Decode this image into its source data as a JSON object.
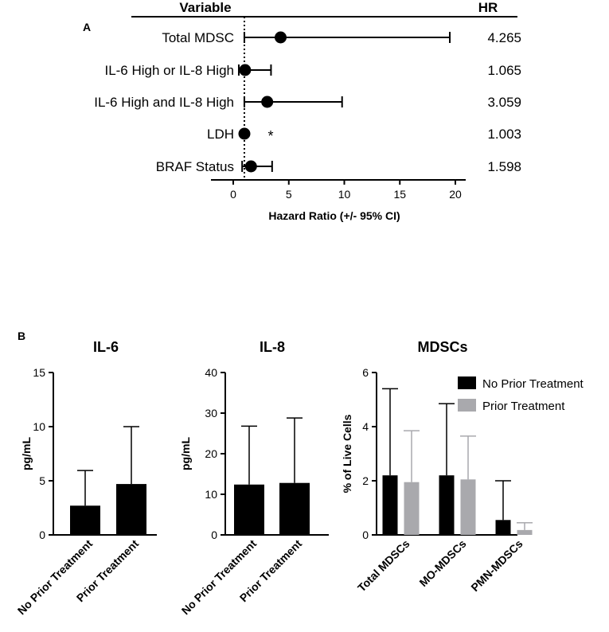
{
  "panel_a": {
    "label": "A",
    "header_variable": "Variable",
    "header_hr": "HR"
  },
  "panel_b": {
    "label": "B"
  },
  "chart_data": [
    {
      "type": "forest",
      "title": "",
      "xlabel": "Hazard Ratio (+/- 95% CI)",
      "xlim": [
        -2,
        20
      ],
      "xticks": [
        0,
        5,
        10,
        15,
        20
      ],
      "reference_line": 1,
      "rows": [
        {
          "variable": "Total MDSC",
          "hr": 4.265,
          "hr_label": "4.265",
          "ci": [
            1.0,
            19.5
          ],
          "annotation": ""
        },
        {
          "variable": "IL-6 High or IL-8 High",
          "hr": 1.065,
          "hr_label": "1.065",
          "ci": [
            0.5,
            3.4
          ],
          "annotation": ""
        },
        {
          "variable": "IL-6 High and IL-8 High",
          "hr": 3.059,
          "hr_label": "3.059",
          "ci": [
            1.0,
            9.8
          ],
          "annotation": ""
        },
        {
          "variable": "LDH",
          "hr": 1.003,
          "hr_label": "1.003",
          "ci": [
            0.95,
            1.05
          ],
          "annotation": "*"
        },
        {
          "variable": "BRAF Status",
          "hr": 1.598,
          "hr_label": "1.598",
          "ci": [
            0.8,
            3.5
          ],
          "annotation": ""
        }
      ]
    },
    {
      "type": "bar",
      "title": "IL-6",
      "ylabel": "pg/mL",
      "ylim": [
        0,
        15
      ],
      "yticks": [
        0,
        5,
        10,
        15
      ],
      "categories": [
        "No Prior Treatment",
        "Prior Treatment"
      ],
      "series": [
        {
          "name": "",
          "color": "#000000",
          "values": [
            2.7,
            4.7
          ],
          "error_upper": [
            5.95,
            10.0
          ]
        }
      ]
    },
    {
      "type": "bar",
      "title": "IL-8",
      "ylabel": "pg/mL",
      "ylim": [
        0,
        40
      ],
      "yticks": [
        0,
        10,
        20,
        30,
        40
      ],
      "categories": [
        "No Prior Treatment",
        "Prior Treatment"
      ],
      "series": [
        {
          "name": "",
          "color": "#000000",
          "values": [
            12.4,
            12.8
          ],
          "error_upper": [
            26.8,
            28.8
          ]
        }
      ]
    },
    {
      "type": "bar",
      "title": "MDSCs",
      "ylabel": "% of Live Cells",
      "ylim": [
        0,
        6
      ],
      "yticks": [
        0,
        2,
        4,
        6
      ],
      "categories": [
        "Total MDSCs",
        "MO-MDSCs",
        "PMN-MDSCs"
      ],
      "legend_position": "top-right",
      "series": [
        {
          "name": "No Prior Treatment",
          "color": "#000000",
          "values": [
            2.2,
            2.2,
            0.55
          ],
          "error_upper": [
            5.4,
            4.85,
            2.0
          ]
        },
        {
          "name": "Prior Treatment",
          "color": "#a9a9ad",
          "values": [
            1.95,
            2.05,
            0.18
          ],
          "error_upper": [
            3.85,
            3.65,
            0.45
          ]
        }
      ]
    }
  ]
}
